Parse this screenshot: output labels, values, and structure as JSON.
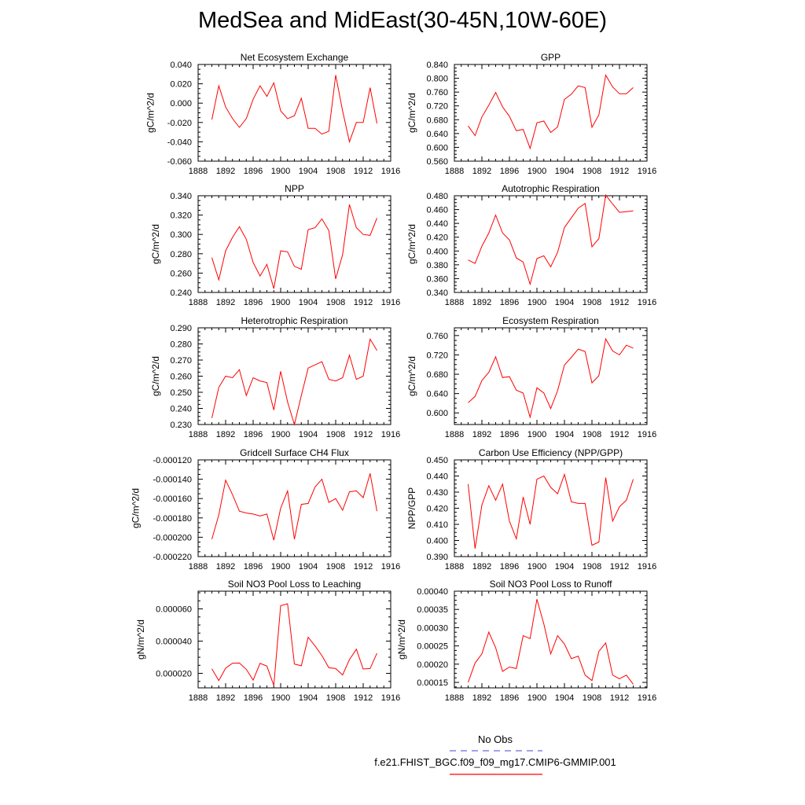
{
  "title": "MedSea and MidEast(30-45N,10W-60E)",
  "colors": {
    "model": "#ff0000",
    "obs": "#6a6ae0",
    "axis": "#000000"
  },
  "legend": {
    "obs_label": "No Obs",
    "case_label": "f.e21.FHIST_BGC.f09_f09_mg17.CMIP6-GMMIP.001"
  },
  "chart_data": [
    {
      "type": "line",
      "title": "Net Ecosystem Exchange",
      "ylabel": "gC/m^2/d",
      "xlim": [
        1888,
        1916
      ],
      "ylim": [
        -0.06,
        0.04
      ],
      "xticks": [
        "1888",
        "1892",
        "1896",
        "1900",
        "1904",
        "1908",
        "1912",
        "1916"
      ],
      "yticks": [
        "-0.060",
        "-0.040",
        "-0.020",
        "0.000",
        "0.020",
        "0.040"
      ],
      "x": [
        1890,
        1891,
        1892,
        1893,
        1894,
        1895,
        1896,
        1897,
        1898,
        1899,
        1900,
        1901,
        1902,
        1903,
        1904,
        1905,
        1906,
        1907,
        1908,
        1909,
        1910,
        1911,
        1912,
        1913,
        1914
      ],
      "values": [
        -0.017,
        0.018,
        -0.004,
        -0.016,
        -0.025,
        -0.016,
        0.004,
        0.018,
        0.007,
        0.021,
        -0.008,
        -0.016,
        -0.013,
        0.005,
        -0.026,
        -0.026,
        -0.032,
        -0.029,
        0.029,
        -0.008,
        -0.04,
        -0.02,
        -0.02,
        0.016,
        -0.021
      ]
    },
    {
      "type": "line",
      "title": "GPP",
      "ylabel": "gC/m^2/d",
      "xlim": [
        1888,
        1916
      ],
      "ylim": [
        0.56,
        0.84
      ],
      "xticks": [
        "1888",
        "1892",
        "1896",
        "1900",
        "1904",
        "1908",
        "1912",
        "1916"
      ],
      "yticks": [
        "0.560",
        "0.600",
        "0.640",
        "0.680",
        "0.720",
        "0.760",
        "0.800",
        "0.840"
      ],
      "x": [
        1890,
        1891,
        1892,
        1893,
        1894,
        1895,
        1896,
        1897,
        1898,
        1899,
        1900,
        1901,
        1902,
        1903,
        1904,
        1905,
        1906,
        1907,
        1908,
        1909,
        1910,
        1911,
        1912,
        1913,
        1914
      ],
      "values": [
        0.662,
        0.634,
        0.688,
        0.722,
        0.759,
        0.717,
        0.69,
        0.648,
        0.652,
        0.597,
        0.671,
        0.676,
        0.643,
        0.659,
        0.739,
        0.754,
        0.778,
        0.773,
        0.658,
        0.694,
        0.809,
        0.775,
        0.755,
        0.755,
        0.773
      ]
    },
    {
      "type": "line",
      "title": "NPP",
      "ylabel": "gC/m^2/d",
      "xlim": [
        1888,
        1916
      ],
      "ylim": [
        0.24,
        0.34
      ],
      "xticks": [
        "1888",
        "1892",
        "1896",
        "1900",
        "1904",
        "1908",
        "1912",
        "1916"
      ],
      "yticks": [
        "0.240",
        "0.260",
        "0.280",
        "0.300",
        "0.320",
        "0.340"
      ],
      "x": [
        1890,
        1891,
        1892,
        1893,
        1894,
        1895,
        1896,
        1897,
        1898,
        1899,
        1900,
        1901,
        1902,
        1903,
        1904,
        1905,
        1906,
        1907,
        1908,
        1909,
        1910,
        1911,
        1912,
        1913,
        1914
      ],
      "values": [
        0.276,
        0.253,
        0.283,
        0.297,
        0.308,
        0.295,
        0.271,
        0.257,
        0.269,
        0.244,
        0.283,
        0.282,
        0.267,
        0.264,
        0.305,
        0.307,
        0.316,
        0.304,
        0.254,
        0.279,
        0.331,
        0.307,
        0.3,
        0.299,
        0.317
      ]
    },
    {
      "type": "line",
      "title": "Autotrophic Respiration",
      "ylabel": "gC/m^2/d",
      "xlim": [
        1888,
        1916
      ],
      "ylim": [
        0.34,
        0.48
      ],
      "xticks": [
        "1888",
        "1892",
        "1896",
        "1900",
        "1904",
        "1908",
        "1912",
        "1916"
      ],
      "yticks": [
        "0.340",
        "0.360",
        "0.380",
        "0.400",
        "0.420",
        "0.440",
        "0.460",
        "0.480"
      ],
      "x": [
        1890,
        1891,
        1892,
        1893,
        1894,
        1895,
        1896,
        1897,
        1898,
        1899,
        1900,
        1901,
        1902,
        1903,
        1904,
        1905,
        1906,
        1907,
        1908,
        1909,
        1910,
        1911,
        1912,
        1913,
        1914
      ],
      "values": [
        0.387,
        0.382,
        0.407,
        0.426,
        0.452,
        0.426,
        0.416,
        0.39,
        0.384,
        0.352,
        0.389,
        0.393,
        0.377,
        0.398,
        0.434,
        0.448,
        0.462,
        0.469,
        0.406,
        0.418,
        0.481,
        0.468,
        0.456,
        0.457,
        0.458
      ]
    },
    {
      "type": "line",
      "title": "Heterotrophic Respiration",
      "ylabel": "gC/m^2/d",
      "xlim": [
        1888,
        1916
      ],
      "ylim": [
        0.23,
        0.29
      ],
      "xticks": [
        "1888",
        "1892",
        "1896",
        "1900",
        "1904",
        "1908",
        "1912",
        "1916"
      ],
      "yticks": [
        "0.230",
        "0.240",
        "0.250",
        "0.260",
        "0.270",
        "0.280",
        "0.290"
      ],
      "x": [
        1890,
        1891,
        1892,
        1893,
        1894,
        1895,
        1896,
        1897,
        1898,
        1899,
        1900,
        1901,
        1902,
        1903,
        1904,
        1905,
        1906,
        1907,
        1908,
        1909,
        1910,
        1911,
        1912,
        1913,
        1914
      ],
      "values": [
        0.234,
        0.253,
        0.26,
        0.259,
        0.264,
        0.248,
        0.259,
        0.257,
        0.256,
        0.239,
        0.263,
        0.244,
        0.23,
        0.248,
        0.265,
        0.267,
        0.269,
        0.258,
        0.257,
        0.259,
        0.273,
        0.258,
        0.26,
        0.283,
        0.276
      ]
    },
    {
      "type": "line",
      "title": "Ecosystem Respiration",
      "ylabel": "gC/m^2/d",
      "xlim": [
        1888,
        1916
      ],
      "ylim": [
        0.576,
        0.776
      ],
      "xticks": [
        "1888",
        "1892",
        "1896",
        "1900",
        "1904",
        "1908",
        "1912",
        "1916"
      ],
      "yticks": [
        "0.600",
        "0.640",
        "0.680",
        "0.720",
        "0.760"
      ],
      "x": [
        1890,
        1891,
        1892,
        1893,
        1894,
        1895,
        1896,
        1897,
        1898,
        1899,
        1900,
        1901,
        1902,
        1903,
        1904,
        1905,
        1906,
        1907,
        1908,
        1909,
        1910,
        1911,
        1912,
        1913,
        1914
      ],
      "values": [
        0.621,
        0.634,
        0.667,
        0.684,
        0.716,
        0.673,
        0.675,
        0.647,
        0.641,
        0.591,
        0.652,
        0.641,
        0.609,
        0.646,
        0.699,
        0.715,
        0.732,
        0.727,
        0.662,
        0.677,
        0.753,
        0.728,
        0.72,
        0.74,
        0.734
      ]
    },
    {
      "type": "line",
      "title": "Gridcell Surface CH4 Flux",
      "ylabel": "gC/m^2/d",
      "xlim": [
        1888,
        1916
      ],
      "ylim": [
        -0.00022,
        -0.00012
      ],
      "xticks": [
        "1888",
        "1892",
        "1896",
        "1900",
        "1904",
        "1908",
        "1912",
        "1916"
      ],
      "yticks": [
        "-0.000220",
        "-0.000200",
        "-0.000180",
        "-0.000160",
        "-0.000140",
        "-0.000120"
      ],
      "x": [
        1890,
        1891,
        1892,
        1893,
        1894,
        1895,
        1896,
        1897,
        1898,
        1899,
        1900,
        1901,
        1902,
        1903,
        1904,
        1905,
        1906,
        1907,
        1908,
        1909,
        1910,
        1911,
        1912,
        1913,
        1914
      ],
      "values": [
        -0.000202,
        -0.000177,
        -0.000141,
        -0.000156,
        -0.000173,
        -0.000175,
        -0.000176,
        -0.000178,
        -0.000176,
        -0.000203,
        -0.00017,
        -0.000152,
        -0.000202,
        -0.000166,
        -0.000165,
        -0.000148,
        -0.00014,
        -0.000164,
        -0.00016,
        -0.000172,
        -0.000153,
        -0.000152,
        -0.000159,
        -0.000134,
        -0.000173
      ]
    },
    {
      "type": "line",
      "title": "Carbon Use Efficiency (NPP/GPP)",
      "ylabel": "NPP/GPP",
      "xlim": [
        1888,
        1916
      ],
      "ylim": [
        0.39,
        0.45
      ],
      "xticks": [
        "1888",
        "1892",
        "1896",
        "1900",
        "1904",
        "1908",
        "1912",
        "1916"
      ],
      "yticks": [
        "0.390",
        "0.400",
        "0.410",
        "0.420",
        "0.430",
        "0.440",
        "0.450"
      ],
      "x": [
        1890,
        1891,
        1892,
        1893,
        1894,
        1895,
        1896,
        1897,
        1898,
        1899,
        1900,
        1901,
        1902,
        1903,
        1904,
        1905,
        1906,
        1907,
        1908,
        1909,
        1910,
        1911,
        1912,
        1913,
        1914
      ],
      "values": [
        0.435,
        0.395,
        0.422,
        0.434,
        0.425,
        0.435,
        0.412,
        0.401,
        0.427,
        0.41,
        0.438,
        0.44,
        0.433,
        0.429,
        0.441,
        0.424,
        0.423,
        0.423,
        0.397,
        0.399,
        0.439,
        0.412,
        0.421,
        0.425,
        0.438
      ]
    },
    {
      "type": "line",
      "title": "Soil NO3 Pool Loss to Leaching",
      "ylabel": "gN/m^2/d",
      "xlim": [
        1888,
        1916
      ],
      "ylim": [
        1.1e-05,
        7.1e-05
      ],
      "xticks": [
        "1888",
        "1892",
        "1896",
        "1900",
        "1904",
        "1908",
        "1912",
        "1916"
      ],
      "yticks": [
        "0.000020",
        "0.000040",
        "0.000060"
      ],
      "x": [
        1890,
        1891,
        1892,
        1893,
        1894,
        1895,
        1896,
        1897,
        1898,
        1899,
        1900,
        1901,
        1902,
        1903,
        1904,
        1905,
        1906,
        1907,
        1908,
        1909,
        1910,
        1911,
        1912,
        1913,
        1914
      ],
      "values": [
        2.28e-05,
        1.55e-05,
        2.32e-05,
        2.63e-05,
        2.64e-05,
        2.25e-05,
        1.58e-05,
        2.62e-05,
        2.45e-05,
        1.25e-05,
        6.2e-05,
        6.32e-05,
        2.58e-05,
        2.47e-05,
        4.24e-05,
        3.7e-05,
        3.1e-05,
        2.35e-05,
        2.3e-05,
        1.9e-05,
        2.85e-05,
        3.5e-05,
        2.27e-05,
        2.3e-05,
        3.25e-05
      ]
    },
    {
      "type": "line",
      "title": "Soil NO3 Pool Loss to Runoff",
      "ylabel": "gN/m^2/d",
      "xlim": [
        1888,
        1916
      ],
      "ylim": [
        0.000135,
        0.0004
      ],
      "xticks": [
        "1888",
        "1892",
        "1896",
        "1900",
        "1904",
        "1908",
        "1912",
        "1916"
      ],
      "yticks": [
        "0.00015",
        "0.00020",
        "0.00025",
        "0.00030",
        "0.00035",
        "0.00040"
      ],
      "x": [
        1890,
        1891,
        1892,
        1893,
        1894,
        1895,
        1896,
        1897,
        1898,
        1899,
        1900,
        1901,
        1902,
        1903,
        1904,
        1905,
        1906,
        1907,
        1908,
        1909,
        1910,
        1911,
        1912,
        1913,
        1914
      ],
      "values": [
        0.00015,
        0.000203,
        0.000228,
        0.000288,
        0.000245,
        0.00018,
        0.000192,
        0.000188,
        0.000278,
        0.00027,
        0.000378,
        0.00031,
        0.000228,
        0.000278,
        0.000255,
        0.000215,
        0.000222,
        0.00017,
        0.000155,
        0.000235,
        0.000258,
        0.00017,
        0.00016,
        0.00017,
        0.000145
      ]
    }
  ]
}
